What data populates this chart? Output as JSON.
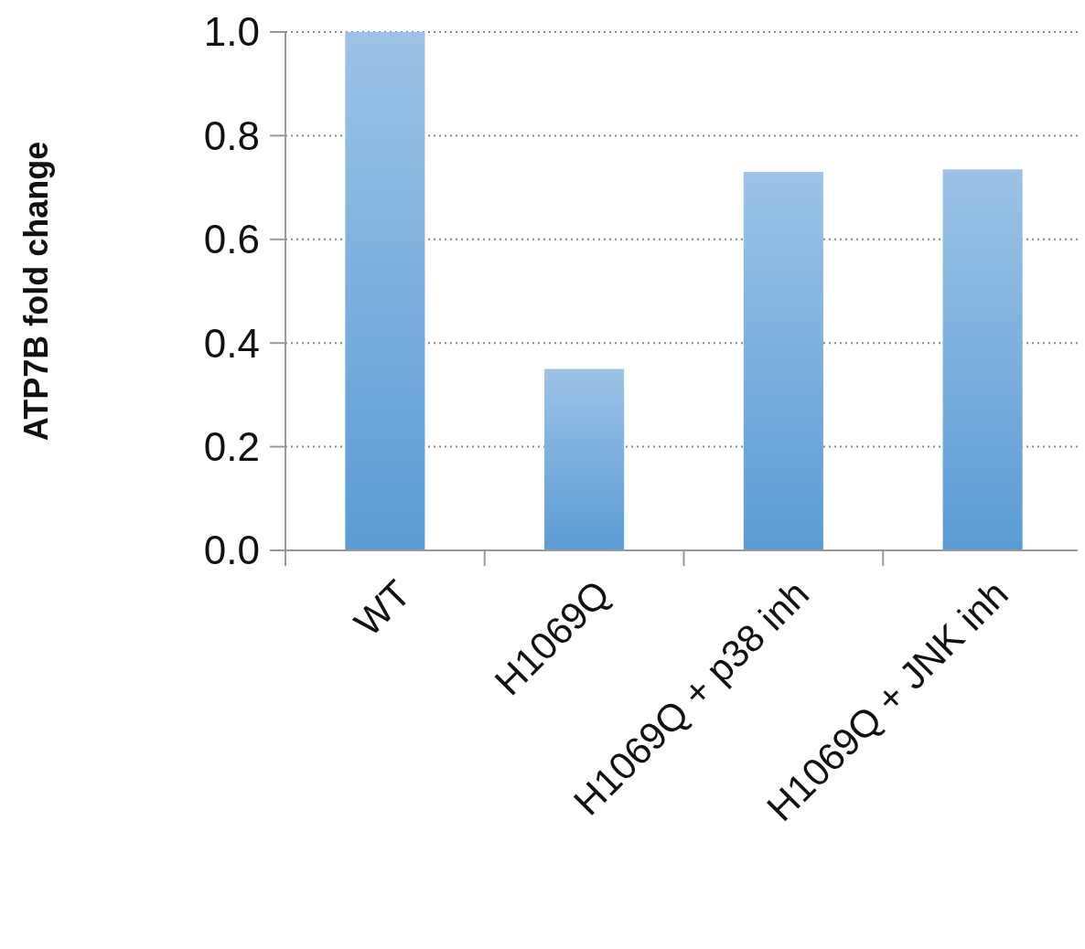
{
  "chart_data": {
    "type": "bar",
    "ylabel": "ATP7B fold change",
    "categories": [
      "WT",
      "H1069Q",
      "H1069Q + p38 inh",
      "H1069Q + JNK inh"
    ],
    "values": [
      1.0,
      0.35,
      0.73,
      0.735
    ],
    "color": "#5b9bd5",
    "ylim": [
      0,
      1
    ],
    "yticks": [
      {
        "value": 0,
        "label": "0.0"
      },
      {
        "value": 0.2,
        "label": "0.2"
      },
      {
        "value": 0.4,
        "label": "0.4"
      },
      {
        "value": 0.6,
        "label": "0.6"
      },
      {
        "value": 0.8,
        "label": "0.8"
      },
      {
        "value": 1,
        "label": "1.0"
      }
    ],
    "grid": "y"
  }
}
